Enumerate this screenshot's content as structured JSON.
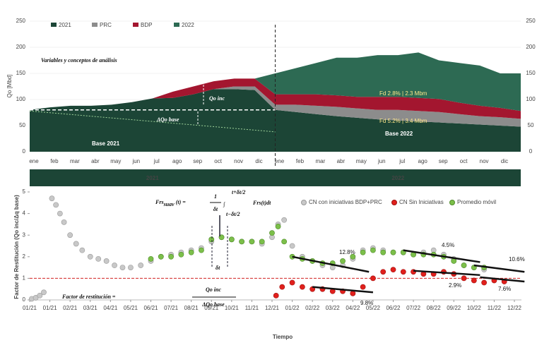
{
  "chart_data": [
    {
      "type": "stacked_area",
      "ylabel": "Qo [Mbd]",
      "xlim": [
        0,
        24
      ],
      "ylim": [
        0,
        250
      ],
      "yticks": [
        0,
        50,
        100,
        150,
        200,
        250
      ],
      "months": [
        "ene",
        "feb",
        "mar",
        "abr",
        "may",
        "jun",
        "jul",
        "ago",
        "sep",
        "oct",
        "nov",
        "dic",
        "ene",
        "feb",
        "mar",
        "abr",
        "may",
        "jun",
        "jul",
        "ago",
        "sep",
        "oct",
        "nov",
        "dic"
      ],
      "years": [
        "2021",
        "2022"
      ],
      "x": [
        0,
        1,
        2,
        3,
        4,
        5,
        6,
        7,
        8,
        9,
        10,
        11,
        12,
        13,
        14,
        15,
        16,
        17,
        18,
        19,
        20,
        21,
        22,
        23,
        24
      ],
      "series": [
        {
          "name": "2021",
          "color": "#1c4536",
          "values": [
            80,
            85,
            88,
            88,
            90,
            95,
            102,
            103,
            110,
            120,
            120,
            118,
            80,
            76,
            72,
            68,
            65,
            62,
            60,
            58,
            56,
            54,
            52,
            50,
            48
          ]
        },
        {
          "name": "PRC",
          "color": "#8c8c8c",
          "values": [
            0,
            0,
            0,
            0,
            0,
            0,
            0,
            0,
            0,
            0,
            5,
            7,
            10,
            14,
            16,
            18,
            18,
            18,
            20,
            20,
            20,
            18,
            16,
            16,
            15
          ]
        },
        {
          "name": "BDP",
          "color": "#a3162f",
          "values": [
            0,
            0,
            0,
            0,
            0,
            0,
            0,
            12,
            15,
            15,
            15,
            15,
            20,
            20,
            22,
            22,
            22,
            25,
            25,
            25,
            25,
            22,
            20,
            18,
            15
          ]
        },
        {
          "name": "2022",
          "color": "#2d6a53",
          "values": [
            0,
            0,
            0,
            0,
            0,
            0,
            0,
            0,
            0,
            0,
            0,
            0,
            40,
            50,
            60,
            72,
            75,
            80,
            80,
            87,
            74,
            76,
            77,
            66,
            72
          ]
        }
      ],
      "annotations": {
        "title": "Variables y conceptos de análisis",
        "qinc": "Qo inc",
        "qbase": "ΔQo base",
        "base2021": "Base 2021",
        "base2022": "Base 2022",
        "fd1": "Fd 2.8% | 2.3 Mbm",
        "fd2": "Fd 5.2% | 3.4 Mbm"
      }
    },
    {
      "type": "scatter",
      "ylabel": "Factor de Restitución (Qo inc/Δq base)",
      "xlabel": "Tiempo",
      "xlim": [
        0,
        24
      ],
      "ylim": [
        0,
        5
      ],
      "yticks": [
        0,
        1,
        2,
        3,
        4,
        5
      ],
      "ref_line": 1,
      "xticks": [
        {
          "value": 0,
          "label": "01/21"
        },
        {
          "value": 1,
          "label": "01/21"
        },
        {
          "value": 2,
          "label": "02/21"
        },
        {
          "value": 3,
          "label": "03/21"
        },
        {
          "value": 4,
          "label": "04/21"
        },
        {
          "value": 5,
          "label": "05/21"
        },
        {
          "value": 6,
          "label": "06/21"
        },
        {
          "value": 7,
          "label": "07/21"
        },
        {
          "value": 8,
          "label": "08/21"
        },
        {
          "value": 9,
          "label": "09/21"
        },
        {
          "value": 10,
          "label": "10/21"
        },
        {
          "value": 11,
          "label": "11/21"
        },
        {
          "value": 12,
          "label": "12/21"
        },
        {
          "value": 13,
          "label": "01/22"
        },
        {
          "value": 14,
          "label": "02/22"
        },
        {
          "value": 15,
          "label": "03/22"
        },
        {
          "value": 16,
          "label": "04/22"
        },
        {
          "value": 17,
          "label": "05/22"
        },
        {
          "value": 18,
          "label": "06/22"
        },
        {
          "value": 19,
          "label": "07/22"
        },
        {
          "value": 20,
          "label": "08/22"
        },
        {
          "value": 21,
          "label": "09/22"
        },
        {
          "value": 22,
          "label": "10/22"
        },
        {
          "value": 23,
          "label": "11/22"
        },
        {
          "value": 24,
          "label": "12/22"
        }
      ],
      "series": [
        {
          "name": "CN con iniciativas BDP+PRC",
          "color": "#c8c8c8",
          "stroke": "#9a9a9a",
          "x": [
            0.1,
            0.3,
            0.5,
            0.7,
            1.1,
            1.3,
            1.5,
            1.7,
            2,
            2.3,
            2.6,
            3,
            3.4,
            3.8,
            4.2,
            4.6,
            5,
            5.5,
            6,
            6.5,
            7,
            7.5,
            8,
            8.5,
            9,
            9.5,
            10,
            10.5,
            11,
            11.5,
            12,
            12.3,
            12.6,
            13,
            13.5,
            14,
            14.5,
            15,
            15.5,
            16,
            16.5,
            17,
            17.5,
            18,
            18.5,
            19,
            19.5,
            20,
            20.5,
            21,
            21.5,
            22,
            22.5
          ],
          "values": [
            0.05,
            0.1,
            0.2,
            0.35,
            4.7,
            4.4,
            4.0,
            3.6,
            3.0,
            2.6,
            2.3,
            2.0,
            1.9,
            1.8,
            1.6,
            1.5,
            1.5,
            1.6,
            1.8,
            2.0,
            2.1,
            2.2,
            2.3,
            2.4,
            2.7,
            2.9,
            2.8,
            2.7,
            2.7,
            2.6,
            2.9,
            3.5,
            3.7,
            2.5,
            2.0,
            1.8,
            1.6,
            1.5,
            1.6,
            1.9,
            2.3,
            2.4,
            2.3,
            2.2,
            2.2,
            2.1,
            2.2,
            2.3,
            2.1,
            1.9,
            1.6,
            1.5,
            1.4
          ]
        },
        {
          "name": "CN Sin Iniciativas",
          "color": "#e0201c",
          "stroke": "#a01010",
          "x": [
            12.2,
            12.5,
            13,
            13.5,
            14,
            14.5,
            15,
            15.5,
            16,
            16.5,
            17,
            17.5,
            18,
            18.5,
            19,
            19.5,
            20,
            20.5,
            21,
            21.5,
            22,
            22.5,
            23,
            23.5
          ],
          "values": [
            0.2,
            0.6,
            0.8,
            0.6,
            0.5,
            0.5,
            0.4,
            0.4,
            0.3,
            0.6,
            1.0,
            1.3,
            1.4,
            1.3,
            1.3,
            1.2,
            1.2,
            1.3,
            1.2,
            1.0,
            0.9,
            0.8,
            0.9,
            0.85
          ]
        },
        {
          "name": "Promedio móvil",
          "color": "#7cbf4a",
          "stroke": "#4f8c2a",
          "x": [
            6,
            6.5,
            7,
            7.5,
            8,
            8.5,
            9,
            9.5,
            10,
            10.5,
            11,
            11.5,
            12,
            12.3,
            12.6,
            13,
            13.5,
            14,
            14.5,
            15,
            15.5,
            16,
            16.5,
            17,
            17.5,
            18,
            18.5,
            19,
            19.5,
            20,
            20.5,
            21,
            21.5,
            22,
            22.5
          ],
          "values": [
            1.9,
            2.0,
            2.0,
            2.1,
            2.2,
            2.3,
            2.8,
            2.9,
            2.8,
            2.7,
            2.7,
            2.7,
            3.1,
            3.4,
            2.7,
            2.0,
            1.9,
            1.8,
            1.7,
            1.7,
            1.8,
            2.0,
            2.2,
            2.3,
            2.2,
            2.2,
            2.2,
            2.1,
            2.1,
            2.1,
            2.0,
            1.8,
            1.6,
            1.5,
            1.5
          ]
        }
      ],
      "trend_lines": [
        {
          "label": "12.8%",
          "x": [
            13,
            16.8
          ],
          "values": [
            2.0,
            1.3
          ]
        },
        {
          "label": "4.5%",
          "x": [
            18.5,
            22.3
          ],
          "values": [
            2.3,
            1.75
          ]
        },
        {
          "label": "10.6%",
          "x": [
            22,
            24.5
          ],
          "values": [
            1.6,
            1.3
          ]
        },
        {
          "label": "9.8%",
          "x": [
            14,
            17
          ],
          "values": [
            0.6,
            0.35
          ]
        },
        {
          "label": "2.9%",
          "x": [
            19,
            22.3
          ],
          "values": [
            1.35,
            1.15
          ]
        },
        {
          "label": "7.6%",
          "x": [
            22.3,
            24.5
          ],
          "values": [
            1.05,
            0.85
          ]
        }
      ],
      "formula": {
        "lhs": "Frs",
        "sub": "suav",
        "rest": "(t) =",
        "num": "1",
        "den": "δt",
        "upper": "t+δt/2",
        "lower": "t−δt/2",
        "integrand": "Frs(t)dt",
        "dt": "δt"
      },
      "factor": {
        "text": "Factor de restitución =",
        "num": "Qo inc",
        "den": "ΔQo base"
      }
    }
  ]
}
